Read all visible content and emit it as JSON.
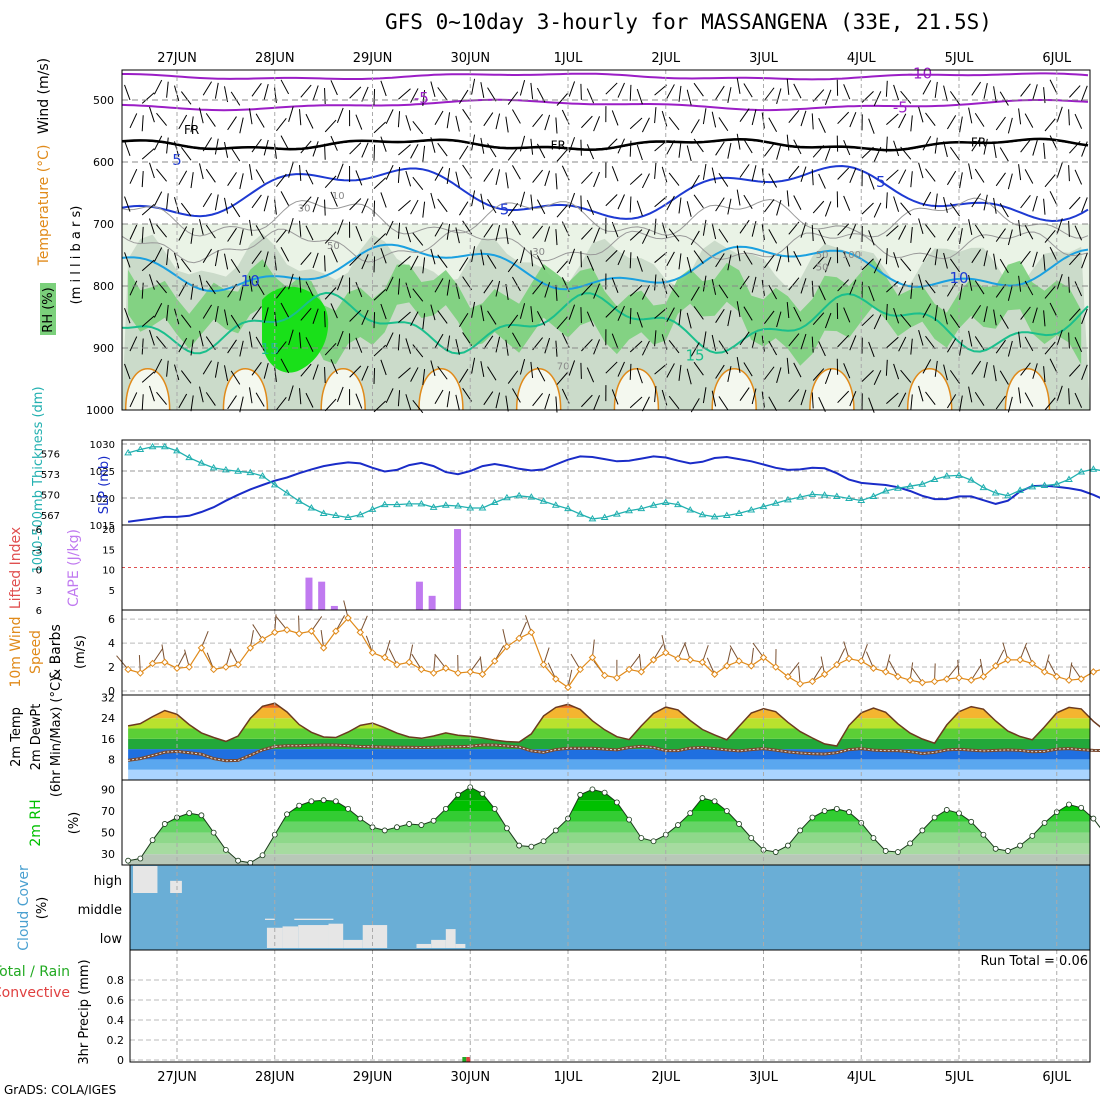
{
  "title": "GFS 0~10day 3-hourly for MASSANGENA (33E, 21.5S)",
  "credit": "GrADS: COLA/IGES",
  "colors": {
    "rh_light": "#eaf3e6",
    "rh_mid": "#c6d6c4",
    "rh_dark": "#a9bfa8",
    "rh_green": "#7bd07b",
    "rh_bright": "#19e019",
    "contour_purple": "#9b1ec6",
    "contour_blue": "#1e3ad2",
    "contour_cyan": "#1aa0e0",
    "contour_teal": "#1abf8c",
    "contour_orange": "#e08a1a",
    "slp": "#1a2cc8",
    "thickness": "#22b0b0",
    "cape": "#c07af0",
    "li_line": "#e05050",
    "wind": "#e08a1a",
    "barb": "#7a5030",
    "cloud": "#6aaed6",
    "cloud_fill": "#e6e6e6",
    "rh2m": "#00c000",
    "precip_total": "#22aa22",
    "precip_conv": "#e04040"
  },
  "x_axis": {
    "days": [
      "27JUN",
      "28JUN",
      "29JUN",
      "30JUN",
      "1JUL",
      "2JUL",
      "3JUL",
      "4JUL",
      "5JUL",
      "6JUL"
    ]
  },
  "chart_data": [
    {
      "type": "contour",
      "panel": "upper_air",
      "ylabel_wind": "Wind (m/s)",
      "ylabel_temp": "Temperature (°C)",
      "ylabel_rh": "RH (%)",
      "ylabel_axis": "(m i l l i b a r s)",
      "yticks": [
        500,
        600,
        700,
        800,
        900,
        1000
      ],
      "ylim": [
        1000,
        450
      ],
      "contour_labels": [
        {
          "text": "-10",
          "level": 465,
          "x_day": 7.6
        },
        {
          "text": "-5",
          "level": 505,
          "x_day": 2.5
        },
        {
          "text": "-5",
          "level": 520,
          "x_day": 7.4
        },
        {
          "text": "FR",
          "level": 555,
          "x_day": 0.15
        },
        {
          "text": "FR",
          "level": 580,
          "x_day": 3.9
        },
        {
          "text": "FR",
          "level": 575,
          "x_day": 8.2
        },
        {
          "text": "5",
          "level": 605,
          "x_day": 0.0
        },
        {
          "text": "5",
          "level": 685,
          "x_day": 3.35
        },
        {
          "text": "5",
          "level": 640,
          "x_day": 7.2
        },
        {
          "text": "10",
          "level": 800,
          "x_day": 0.75
        },
        {
          "text": "10",
          "level": 795,
          "x_day": 8.0
        },
        {
          "text": "15",
          "level": 910,
          "x_day": 0.95
        },
        {
          "text": "15",
          "level": 920,
          "x_day": 5.3
        },
        {
          "text": "30",
          "level": 680,
          "x_day": 1.3
        },
        {
          "text": "50",
          "level": 740,
          "x_day": 1.6
        },
        {
          "text": "10",
          "level": 660,
          "x_day": 1.65
        },
        {
          "text": "30",
          "level": 750,
          "x_day": 3.7
        },
        {
          "text": "50",
          "level": 755,
          "x_day": 6.6
        },
        {
          "text": "100",
          "level": 755,
          "x_day": 6.9
        },
        {
          "text": "50",
          "level": 775,
          "x_day": 6.6
        },
        {
          "text": "70",
          "level": 935,
          "x_day": 3.95
        }
      ]
    },
    {
      "type": "line",
      "panel": "slp_thickness",
      "ylabel_left": "1000-500mb Thickness (dm)",
      "ylabel_right": "SLP (mb)",
      "thickness_ticks": [
        567,
        570,
        573,
        576
      ],
      "slp_ticks": [
        1015,
        1020,
        1025,
        1030
      ],
      "slp_ylim": [
        1015,
        1030
      ],
      "thickness_ylim": [
        565.5,
        578
      ],
      "x_day_step": 0.125,
      "series": [
        {
          "name": "SLP",
          "values": [
            1015.6,
            1015.9,
            1016.2,
            1016.5,
            1016.5,
            1016.7,
            1017.4,
            1018.3,
            1019.5,
            1020.6,
            1021.6,
            1022.4,
            1023.2,
            1023.8,
            1024.6,
            1025.3,
            1025.9,
            1026.3,
            1026.6,
            1026.4,
            1025.6,
            1024.9,
            1025.2,
            1026.1,
            1026.5,
            1025.9,
            1024.8,
            1024.4,
            1025.0,
            1025.9,
            1026.3,
            1025.9,
            1025.4,
            1025.1,
            1025.3,
            1026.2,
            1027.1,
            1027.7,
            1027.6,
            1027.2,
            1026.8,
            1026.9,
            1027.3,
            1027.7,
            1027.5,
            1026.9,
            1026.4,
            1026.7,
            1027.4,
            1027.6,
            1027.2,
            1026.8,
            1026.2,
            1025.6,
            1025.2,
            1025.3,
            1025.6,
            1025.5,
            1024.6,
            1023.4,
            1022.8,
            1022.6,
            1022.4,
            1022.0,
            1021.3,
            1020.4,
            1019.8,
            1019.8,
            1020.3,
            1020.3,
            1019.6,
            1018.9,
            1019.5,
            1021.2,
            1022.2,
            1022.3,
            1022.1,
            1021.8,
            1021.4,
            1020.6,
            1019.6,
            1020.3,
            1021.6,
            1022.2,
            1021.8,
            1021.6,
            1021.8,
            1022.1,
            1022.0,
            1021.8,
            1021.8,
            1022.4
          ]
        },
        {
          "name": "Thickness",
          "values": [
            576.1,
            576.6,
            577.0,
            577.0,
            576.4,
            575.4,
            574.6,
            573.9,
            573.6,
            573.4,
            573.2,
            572.7,
            571.4,
            570.2,
            569.0,
            568.0,
            567.2,
            566.9,
            566.6,
            567.0,
            567.8,
            568.5,
            568.5,
            568.6,
            568.6,
            568.1,
            568.4,
            568.3,
            568.0,
            568.0,
            568.8,
            569.5,
            569.8,
            569.6,
            569.0,
            568.4,
            567.9,
            567.1,
            566.4,
            566.6,
            567.1,
            567.6,
            567.9,
            568.4,
            568.8,
            568.5,
            567.7,
            567.0,
            566.7,
            566.9,
            567.2,
            567.7,
            568.2,
            568.7,
            569.2,
            569.6,
            570.0,
            569.9,
            569.7,
            569.4,
            569.1,
            569.7,
            570.5,
            570.9,
            571.2,
            571.5,
            572.2,
            572.7,
            572.8,
            572.1,
            571.0,
            570.2,
            569.8,
            570.6,
            571.1,
            571.3,
            571.5,
            572.2,
            573.3,
            573.7,
            573.4,
            573.2,
            573.3,
            573.2,
            572.9,
            572.8,
            573.3,
            573.7,
            573.4,
            573.0,
            572.8,
            572.6
          ]
        }
      ]
    },
    {
      "type": "bar",
      "panel": "cape_li",
      "ylabel_left": "Lifted Index",
      "ylabel_right": "CAPE (J/kg)",
      "li_ticks": [
        "-6",
        "-3",
        "0",
        "3",
        "6"
      ],
      "cape_ticks": [
        5,
        10,
        15,
        20
      ],
      "ylim": [
        0,
        21
      ],
      "li_zero_line": 10.5,
      "bars": [
        {
          "x_day": 1.35,
          "value": 8
        },
        {
          "x_day": 1.48,
          "value": 7
        },
        {
          "x_day": 1.61,
          "value": 1
        },
        {
          "x_day": 2.48,
          "value": 7
        },
        {
          "x_day": 2.61,
          "value": 3.5
        },
        {
          "x_day": 2.87,
          "value": 20
        }
      ]
    },
    {
      "type": "line",
      "panel": "wind10m",
      "ylabel": "10m Wind Speed & Barbs (m/s)",
      "ylabel_speed": "Speed",
      "ylabel_barbs": "& Barbs",
      "ylabel_units": "(m/s)",
      "ylabel_top": "10m Wind",
      "yticks": [
        0,
        2,
        4,
        6
      ],
      "ylim": [
        0,
        6.6
      ],
      "x_day_step": 0.125,
      "series": [
        {
          "name": "Speed",
          "values": [
            1.8,
            1.5,
            2.3,
            2.4,
            1.9,
            2.0,
            3.6,
            1.8,
            2.0,
            2.2,
            3.6,
            4.3,
            4.9,
            5.1,
            4.8,
            5.0,
            3.6,
            5.0,
            6.1,
            4.9,
            3.2,
            2.8,
            2.2,
            2.4,
            1.8,
            1.5,
            1.9,
            1.5,
            1.6,
            1.4,
            2.5,
            3.7,
            4.4,
            4.9,
            2.2,
            1.0,
            0.3,
            1.8,
            2.8,
            1.3,
            1.1,
            1.8,
            1.6,
            2.6,
            3.2,
            2.7,
            2.6,
            2.4,
            1.4,
            2.1,
            2.5,
            2.1,
            2.8,
            2.0,
            1.2,
            0.6,
            0.8,
            1.4,
            2.2,
            2.7,
            2.5,
            1.9,
            1.6,
            1.2,
            0.9,
            0.7,
            0.8,
            1.0,
            1.1,
            0.9,
            1.2,
            2.1,
            2.6,
            2.6,
            2.3,
            1.6,
            1.2,
            0.9,
            1.0,
            1.6,
            1.9,
            1.8,
            1.6,
            1.2,
            0.7,
            1.0,
            1.6,
            1.8,
            1.5,
            1.0,
            1.4,
            2.1,
            2.6,
            2.3,
            2.0,
            1.7,
            1.4,
            1.2,
            1.4,
            1.6,
            1.8,
            2.0,
            1.9,
            1.8,
            1.6,
            1.3,
            1.0,
            1.2,
            1.5,
            1.8
          ]
        }
      ]
    },
    {
      "type": "area",
      "panel": "temp2m",
      "ylabel_1": "2m Temp",
      "ylabel_2": "2m DewPt",
      "ylabel_3": "(6hr Min/Max) (°C)",
      "yticks": [
        8,
        16,
        24,
        32
      ],
      "ylim": [
        0,
        33
      ],
      "x_day_step": 0.125,
      "series": [
        {
          "name": "Temp",
          "values": [
            21.0,
            21.9,
            24.6,
            27.0,
            25.5,
            21.5,
            18.3,
            16.5,
            15.0,
            17.1,
            23.9,
            28.6,
            29.8,
            26.4,
            21.5,
            18.5,
            16.7,
            16.5,
            18.6,
            21.2,
            22.1,
            20.3,
            18.2,
            16.7,
            16.2,
            17.1,
            18.3,
            17.4,
            17.0,
            16.3,
            15.5,
            14.9,
            14.7,
            17.9,
            24.9,
            28.2,
            29.4,
            27.4,
            23.0,
            19.5,
            16.8,
            15.7,
            21.0,
            25.8,
            28.3,
            27.2,
            23.1,
            19.6,
            17.5,
            15.6,
            20.9,
            26.0,
            27.7,
            26.5,
            22.4,
            18.8,
            16.3,
            14.0,
            13.2,
            21.2,
            26.1,
            27.9,
            26.3,
            21.8,
            18.2,
            15.9,
            14.3,
            21.4,
            26.5,
            28.5,
            27.5,
            22.9,
            19.0,
            16.9,
            15.6,
            20.6,
            26.1,
            28.2,
            27.6,
            22.8,
            19.0,
            17.0,
            16.8,
            20.4,
            25.8,
            28.2,
            29.1,
            27.1,
            24.8,
            19.4,
            17.0,
            17.0,
            21.5,
            27.0,
            30.8,
            28.5,
            23.3,
            19.2,
            17.2,
            16.6,
            22.4,
            27.2,
            29.2,
            26.9,
            23.0,
            19.0,
            17.7,
            18.4,
            21.3
          ]
        },
        {
          "name": "DewPt",
          "values": [
            7.6,
            8.3,
            9.5,
            10.8,
            11.1,
            10.6,
            10.0,
            8.3,
            7.5,
            7.6,
            9.6,
            11.7,
            13.0,
            13.3,
            13.3,
            13.5,
            13.6,
            13.6,
            13.3,
            13.0,
            12.9,
            12.8,
            12.7,
            12.7,
            12.6,
            12.7,
            12.9,
            12.9,
            13.1,
            13.6,
            13.6,
            13.2,
            12.8,
            11.3,
            10.7,
            11.8,
            12.3,
            12.3,
            12.3,
            12.0,
            11.7,
            12.6,
            13.1,
            12.6,
            11.4,
            11.4,
            12.4,
            12.6,
            12.2,
            11.7,
            11.3,
            11.8,
            12.2,
            11.6,
            10.9,
            10.5,
            10.2,
            10.1,
            10.6,
            11.8,
            12.2,
            11.6,
            11.4,
            11.4,
            11.0,
            10.3,
            10.7,
            11.7,
            11.9,
            11.6,
            11.3,
            11.5,
            11.7,
            11.5,
            11.0,
            11.1,
            12.0,
            12.2,
            11.8,
            11.5,
            11.4,
            11.1,
            11.1,
            11.7,
            11.9,
            11.8,
            11.9,
            12.1,
            11.4,
            10.4,
            10.0,
            10.6,
            12.0,
            12.3,
            11.8,
            11.2,
            11.1,
            11.4,
            11.7,
            11.8,
            12.2,
            12.3,
            12.2,
            12.3,
            12.2,
            11.7,
            11.8
          ]
        }
      ]
    },
    {
      "type": "area",
      "panel": "rh2m",
      "ylabel_1": "2m RH",
      "ylabel_2": "(%)",
      "yticks": [
        30,
        50,
        70,
        90
      ],
      "ylim": [
        20,
        95
      ],
      "x_day_step": 0.125,
      "series": [
        {
          "name": "RH",
          "values": [
            24,
            26,
            43,
            58,
            64,
            68,
            66,
            50,
            34,
            24,
            22,
            29,
            48,
            67,
            75,
            79,
            80,
            79,
            72,
            63,
            55,
            52,
            55,
            58,
            57,
            61,
            72,
            85,
            92,
            86,
            72,
            54,
            38,
            37,
            42,
            52,
            63,
            85,
            90,
            87,
            78,
            62,
            45,
            42,
            48,
            57,
            68,
            82,
            79,
            70,
            58,
            45,
            34,
            32,
            38,
            52,
            64,
            70,
            72,
            69,
            59,
            45,
            33,
            32,
            40,
            52,
            64,
            71,
            68,
            60,
            48,
            35,
            33,
            38,
            47,
            59,
            69,
            76,
            73,
            63,
            48,
            35,
            33,
            42,
            60,
            78,
            88,
            90,
            84,
            72,
            58,
            44,
            36,
            38,
            55,
            76,
            88,
            91,
            88,
            76,
            62,
            44,
            33,
            26,
            35,
            54,
            76,
            91,
            87,
            74
          ]
        }
      ]
    },
    {
      "type": "bar",
      "panel": "cloud",
      "ylabel_1": "Cloud Cover",
      "ylabel_2": "(%)",
      "levels": [
        "high",
        "middle",
        "low"
      ],
      "segments": [
        {
          "level": "high",
          "x_day_start": -0.45,
          "x_day_end": -0.2,
          "value": 100
        },
        {
          "level": "high",
          "x_day_start": -0.07,
          "x_day_end": 0.05,
          "value": 45
        },
        {
          "level": "middle",
          "x_day_start": 0.9,
          "x_day_end": 1.0,
          "value": 5
        },
        {
          "level": "middle",
          "x_day_start": 1.2,
          "x_day_end": 1.6,
          "value": 5
        },
        {
          "level": "low",
          "x_day_start": 0.92,
          "x_day_end": 1.08,
          "value": 75
        },
        {
          "level": "low",
          "x_day_start": 1.08,
          "x_day_end": 1.24,
          "value": 80
        },
        {
          "level": "low",
          "x_day_start": 1.24,
          "x_day_end": 1.55,
          "value": 85
        },
        {
          "level": "low",
          "x_day_start": 1.55,
          "x_day_end": 1.7,
          "value": 90
        },
        {
          "level": "low",
          "x_day_start": 1.7,
          "x_day_end": 1.9,
          "value": 30
        },
        {
          "level": "low",
          "x_day_start": 1.9,
          "x_day_end": 2.15,
          "value": 85
        },
        {
          "level": "low",
          "x_day_start": 2.45,
          "x_day_end": 2.6,
          "value": 15
        },
        {
          "level": "low",
          "x_day_start": 2.6,
          "x_day_end": 2.75,
          "value": 30
        },
        {
          "level": "low",
          "x_day_start": 2.75,
          "x_day_end": 2.85,
          "value": 70
        },
        {
          "level": "low",
          "x_day_start": 2.85,
          "x_day_end": 2.95,
          "value": 15
        }
      ]
    },
    {
      "type": "bar",
      "panel": "precip",
      "ylabel_1": "Total / Rain",
      "ylabel_2": "Convective",
      "ylabel_3": "3hr Precip (mm)",
      "yticks": [
        0,
        0.2,
        0.4,
        0.6,
        0.8
      ],
      "ylim": [
        0,
        1
      ],
      "run_total": "Run Total = 0.06",
      "bars": [
        {
          "x_day": 2.96,
          "total": 0.03,
          "convective": 0.03
        }
      ]
    }
  ]
}
